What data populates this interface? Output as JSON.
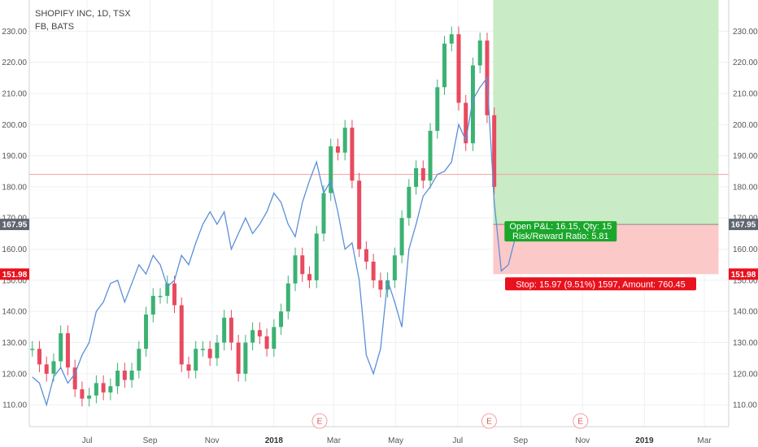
{
  "legend": {
    "main_symbol": "SHOPIFY INC, 1D, TSX",
    "compare_symbol": "FB, BATS"
  },
  "colors": {
    "up": "#26a69a",
    "up_candle": "#3bb272",
    "down": "#e84a5f",
    "compare_line": "#5b8fd9",
    "profit_zone": "#c9ebc5",
    "loss_zone": "#fcc9c9",
    "profit_label_bg": "#1aa72b",
    "loss_label_bg": "#e8121e",
    "entry_line": "#888888",
    "h_line": "#f7a0a0"
  },
  "price_tags": {
    "entry": "167.95",
    "stop": "151.98"
  },
  "position_labels": {
    "profit_line1": "Open P&L: 16.15, Qty: 15",
    "profit_line2": "Risk/Reward Ratio: 5.81",
    "stop_line": "Stop: 15.97 (9.51%) 1597, Amount: 760.45"
  },
  "earnings_marker": "E",
  "chart_data": {
    "type": "line",
    "title": "SHOPIFY INC, 1D, TSX",
    "y_axis_ticks": [
      "230.00",
      "220.00",
      "210.00",
      "200.00",
      "190.00",
      "180.00",
      "170.00",
      "160.00",
      "150.00",
      "140.00",
      "130.00",
      "120.00",
      "110.00"
    ],
    "y_range": [
      103,
      240
    ],
    "x_axis_ticks": [
      "Jul",
      "Sep",
      "Nov",
      "2018",
      "Mar",
      "May",
      "Jul",
      "Sep",
      "Nov",
      "2019",
      "Mar"
    ],
    "x_tick_dates": [
      "2017-07-01",
      "2017-09-01",
      "2017-11-01",
      "2018-01-01",
      "2018-03-01",
      "2018-05-01",
      "2018-07-01",
      "2018-09-01",
      "2018-11-01",
      "2019-01-01",
      "2019-03-01"
    ],
    "x_range": [
      "2017-05-05",
      "2019-03-25"
    ],
    "horizontal_line": 184,
    "position": {
      "entry_price": 167.95,
      "stop_price": 151.98,
      "target_price": 240,
      "start_date": "2018-08-05",
      "end_date": "2019-03-15"
    },
    "earnings_dates": [
      "2018-02-15",
      "2018-08-01",
      "2018-10-30"
    ],
    "series": [
      {
        "name": "SHOPIFY INC",
        "kind": "candlestick",
        "points": [
          {
            "date": "2017-05-08",
            "close": 128
          },
          {
            "date": "2017-05-15",
            "close": 123
          },
          {
            "date": "2017-05-22",
            "close": 120
          },
          {
            "date": "2017-05-29",
            "close": 124
          },
          {
            "date": "2017-06-05",
            "close": 133
          },
          {
            "date": "2017-06-12",
            "close": 122
          },
          {
            "date": "2017-06-19",
            "close": 115
          },
          {
            "date": "2017-06-26",
            "close": 112
          },
          {
            "date": "2017-07-03",
            "close": 113
          },
          {
            "date": "2017-07-10",
            "close": 117
          },
          {
            "date": "2017-07-17",
            "close": 114
          },
          {
            "date": "2017-07-24",
            "close": 116
          },
          {
            "date": "2017-07-31",
            "close": 121
          },
          {
            "date": "2017-08-07",
            "close": 118
          },
          {
            "date": "2017-08-14",
            "close": 121
          },
          {
            "date": "2017-08-21",
            "close": 128
          },
          {
            "date": "2017-08-28",
            "close": 139
          },
          {
            "date": "2017-09-04",
            "close": 145
          },
          {
            "date": "2017-09-11",
            "close": 145
          },
          {
            "date": "2017-09-18",
            "close": 149
          },
          {
            "date": "2017-09-25",
            "close": 142
          },
          {
            "date": "2017-10-02",
            "close": 123
          },
          {
            "date": "2017-10-09",
            "close": 121
          },
          {
            "date": "2017-10-16",
            "close": 128
          },
          {
            "date": "2017-10-23",
            "close": 128
          },
          {
            "date": "2017-10-30",
            "close": 125
          },
          {
            "date": "2017-11-06",
            "close": 130
          },
          {
            "date": "2017-11-13",
            "close": 138
          },
          {
            "date": "2017-11-20",
            "close": 130
          },
          {
            "date": "2017-11-27",
            "close": 120
          },
          {
            "date": "2017-12-04",
            "close": 130
          },
          {
            "date": "2017-12-11",
            "close": 134
          },
          {
            "date": "2017-12-18",
            "close": 132
          },
          {
            "date": "2017-12-25",
            "close": 128
          },
          {
            "date": "2018-01-01",
            "close": 135
          },
          {
            "date": "2018-01-08",
            "close": 140
          },
          {
            "date": "2018-01-15",
            "close": 149
          },
          {
            "date": "2018-01-22",
            "close": 158
          },
          {
            "date": "2018-01-29",
            "close": 152
          },
          {
            "date": "2018-02-05",
            "close": 150
          },
          {
            "date": "2018-02-12",
            "close": 165
          },
          {
            "date": "2018-02-19",
            "close": 178
          },
          {
            "date": "2018-02-26",
            "close": 193
          },
          {
            "date": "2018-03-05",
            "close": 191
          },
          {
            "date": "2018-03-12",
            "close": 199
          },
          {
            "date": "2018-03-19",
            "close": 182
          },
          {
            "date": "2018-03-26",
            "close": 160
          },
          {
            "date": "2018-04-02",
            "close": 156
          },
          {
            "date": "2018-04-09",
            "close": 150
          },
          {
            "date": "2018-04-16",
            "close": 147
          },
          {
            "date": "2018-04-23",
            "close": 150
          },
          {
            "date": "2018-04-30",
            "close": 158
          },
          {
            "date": "2018-05-07",
            "close": 170
          },
          {
            "date": "2018-05-14",
            "close": 180
          },
          {
            "date": "2018-05-21",
            "close": 186
          },
          {
            "date": "2018-05-28",
            "close": 182
          },
          {
            "date": "2018-06-04",
            "close": 198
          },
          {
            "date": "2018-06-11",
            "close": 212
          },
          {
            "date": "2018-06-18",
            "close": 226
          },
          {
            "date": "2018-06-25",
            "close": 229
          },
          {
            "date": "2018-07-02",
            "close": 207
          },
          {
            "date": "2018-07-09",
            "close": 194
          },
          {
            "date": "2018-07-16",
            "close": 219
          },
          {
            "date": "2018-07-23",
            "close": 227
          },
          {
            "date": "2018-07-30",
            "close": 203
          },
          {
            "date": "2018-08-06",
            "close": 180
          }
        ]
      },
      {
        "name": "FB",
        "kind": "line",
        "points": [
          {
            "date": "2017-05-08",
            "close": 119
          },
          {
            "date": "2017-05-15",
            "close": 117
          },
          {
            "date": "2017-05-22",
            "close": 110
          },
          {
            "date": "2017-05-29",
            "close": 119
          },
          {
            "date": "2017-06-05",
            "close": 122
          },
          {
            "date": "2017-06-12",
            "close": 117
          },
          {
            "date": "2017-06-19",
            "close": 120
          },
          {
            "date": "2017-06-26",
            "close": 126
          },
          {
            "date": "2017-07-03",
            "close": 130
          },
          {
            "date": "2017-07-10",
            "close": 140
          },
          {
            "date": "2017-07-17",
            "close": 143
          },
          {
            "date": "2017-07-24",
            "close": 149
          },
          {
            "date": "2017-07-31",
            "close": 150
          },
          {
            "date": "2017-08-07",
            "close": 143
          },
          {
            "date": "2017-08-14",
            "close": 149
          },
          {
            "date": "2017-08-21",
            "close": 155
          },
          {
            "date": "2017-08-28",
            "close": 152
          },
          {
            "date": "2017-09-04",
            "close": 158
          },
          {
            "date": "2017-09-11",
            "close": 155
          },
          {
            "date": "2017-09-18",
            "close": 148
          },
          {
            "date": "2017-09-25",
            "close": 150
          },
          {
            "date": "2017-10-02",
            "close": 158
          },
          {
            "date": "2017-10-09",
            "close": 155
          },
          {
            "date": "2017-10-16",
            "close": 162
          },
          {
            "date": "2017-10-23",
            "close": 168
          },
          {
            "date": "2017-10-30",
            "close": 172
          },
          {
            "date": "2017-11-06",
            "close": 168
          },
          {
            "date": "2017-11-13",
            "close": 172
          },
          {
            "date": "2017-11-20",
            "close": 160
          },
          {
            "date": "2017-11-27",
            "close": 165
          },
          {
            "date": "2017-12-04",
            "close": 170
          },
          {
            "date": "2017-12-11",
            "close": 165
          },
          {
            "date": "2017-12-18",
            "close": 168
          },
          {
            "date": "2017-12-25",
            "close": 172
          },
          {
            "date": "2018-01-01",
            "close": 178
          },
          {
            "date": "2018-01-08",
            "close": 175
          },
          {
            "date": "2018-01-15",
            "close": 168
          },
          {
            "date": "2018-01-22",
            "close": 164
          },
          {
            "date": "2018-01-29",
            "close": 175
          },
          {
            "date": "2018-02-05",
            "close": 182
          },
          {
            "date": "2018-02-12",
            "close": 188
          },
          {
            "date": "2018-02-19",
            "close": 178
          },
          {
            "date": "2018-02-26",
            "close": 182
          },
          {
            "date": "2018-03-05",
            "close": 172
          },
          {
            "date": "2018-03-12",
            "close": 160
          },
          {
            "date": "2018-03-19",
            "close": 162
          },
          {
            "date": "2018-03-26",
            "close": 150
          },
          {
            "date": "2018-04-02",
            "close": 126
          },
          {
            "date": "2018-04-09",
            "close": 120
          },
          {
            "date": "2018-04-16",
            "close": 128
          },
          {
            "date": "2018-04-23",
            "close": 150
          },
          {
            "date": "2018-04-30",
            "close": 143
          },
          {
            "date": "2018-05-07",
            "close": 135
          },
          {
            "date": "2018-05-14",
            "close": 160
          },
          {
            "date": "2018-05-21",
            "close": 168
          },
          {
            "date": "2018-05-28",
            "close": 177
          },
          {
            "date": "2018-06-04",
            "close": 180
          },
          {
            "date": "2018-06-11",
            "close": 184
          },
          {
            "date": "2018-06-18",
            "close": 185
          },
          {
            "date": "2018-06-25",
            "close": 188
          },
          {
            "date": "2018-07-02",
            "close": 200
          },
          {
            "date": "2018-07-09",
            "close": 195
          },
          {
            "date": "2018-07-16",
            "close": 208
          },
          {
            "date": "2018-07-23",
            "close": 212
          },
          {
            "date": "2018-07-30",
            "close": 215
          },
          {
            "date": "2018-08-06",
            "close": 175
          },
          {
            "date": "2018-08-13",
            "close": 153
          },
          {
            "date": "2018-08-20",
            "close": 155
          },
          {
            "date": "2018-08-27",
            "close": 164
          }
        ]
      }
    ]
  }
}
